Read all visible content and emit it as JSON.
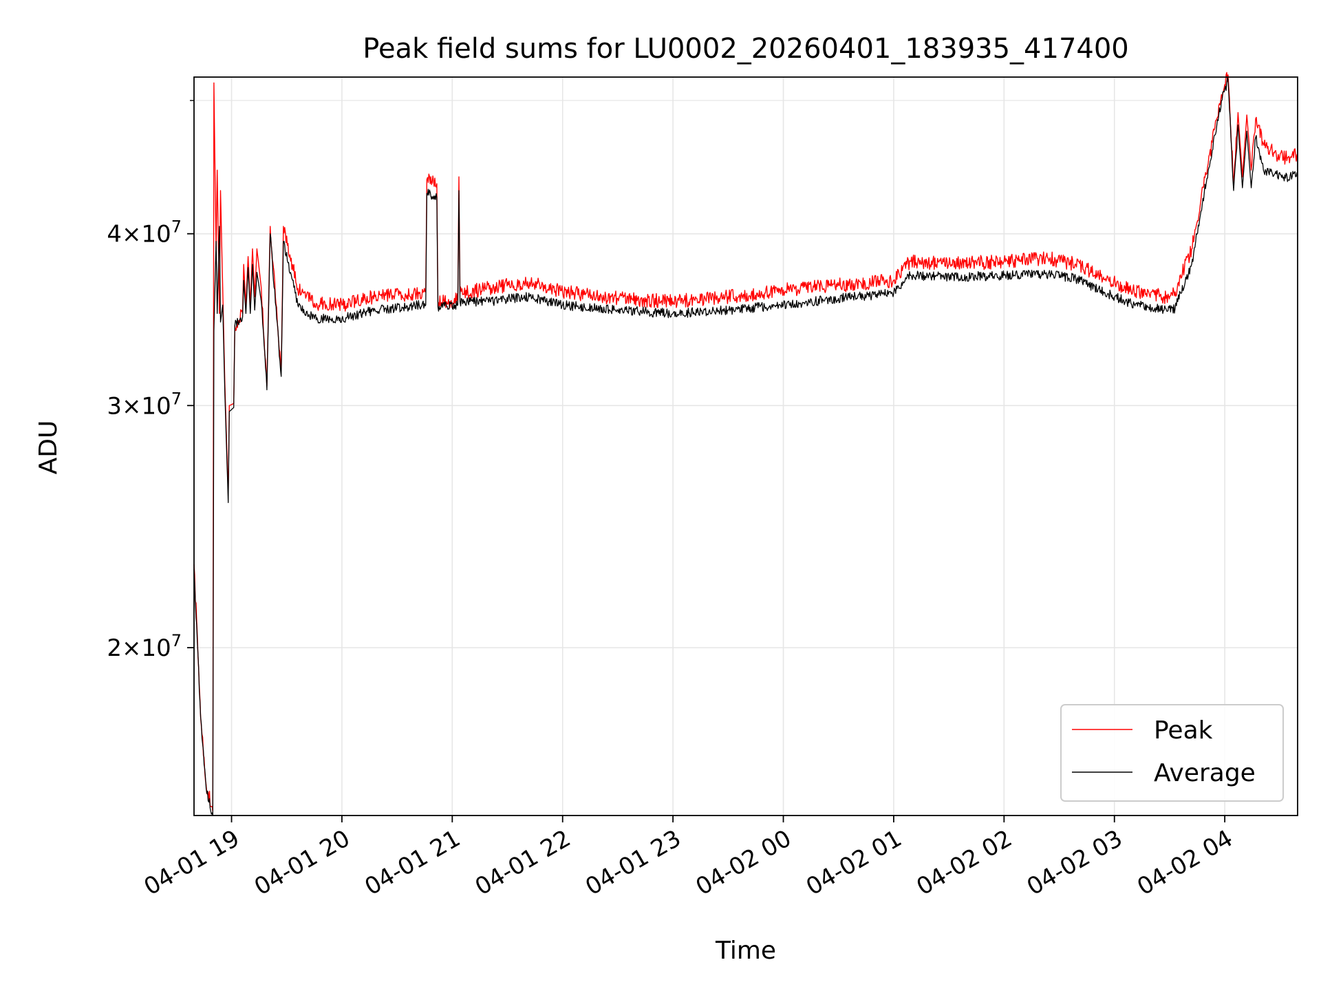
{
  "chart_data": {
    "type": "line",
    "title": "Peak field sums for LU0002_20260401_183935_417400",
    "xlabel": "Time",
    "ylabel": "ADU",
    "yscale": "log",
    "xlim_hours": [
      18.66,
      28.66
    ],
    "ylim": [
      15100000,
      52000000
    ],
    "grid": true,
    "legend_position": "lower right",
    "x_ticks": [
      {
        "value": 19,
        "label": "04-01 19"
      },
      {
        "value": 20,
        "label": "04-01 20"
      },
      {
        "value": 21,
        "label": "04-01 21"
      },
      {
        "value": 22,
        "label": "04-01 22"
      },
      {
        "value": 23,
        "label": "04-01 23"
      },
      {
        "value": 24,
        "label": "04-02 00"
      },
      {
        "value": 25,
        "label": "04-02 01"
      },
      {
        "value": 26,
        "label": "04-02 02"
      },
      {
        "value": 27,
        "label": "04-02 03"
      },
      {
        "value": 28,
        "label": "04-02 04"
      }
    ],
    "y_ticks": [
      {
        "value": 20000000,
        "mant": "2",
        "exp": "7"
      },
      {
        "value": 30000000,
        "mant": "3",
        "exp": "7"
      },
      {
        "value": 40000000,
        "mant": "4",
        "exp": "7"
      }
    ],
    "y_minor_ticks": [
      50000000
    ],
    "series": [
      {
        "name": "Peak",
        "color": "#ff0000",
        "points": [
          [
            18.66,
            23000000
          ],
          [
            18.72,
            17800000
          ],
          [
            18.77,
            15900000
          ],
          [
            18.83,
            15200000
          ],
          [
            18.84,
            51500000
          ],
          [
            18.86,
            39000000
          ],
          [
            18.87,
            44500000
          ],
          [
            18.89,
            35000000
          ],
          [
            18.9,
            43000000
          ],
          [
            18.92,
            36500000
          ],
          [
            18.94,
            31000000
          ],
          [
            18.97,
            25800000
          ],
          [
            18.98,
            30000000
          ],
          [
            19.02,
            30100000
          ],
          [
            19.03,
            34300000
          ],
          [
            19.1,
            35000000
          ],
          [
            19.11,
            38000000
          ],
          [
            19.13,
            35500000
          ],
          [
            19.15,
            38500000
          ],
          [
            19.17,
            35500000
          ],
          [
            19.19,
            39000000
          ],
          [
            19.21,
            36000000
          ],
          [
            19.23,
            39000000
          ],
          [
            19.27,
            36500000
          ],
          [
            19.32,
            31000000
          ],
          [
            19.35,
            40500000
          ],
          [
            19.45,
            31800000
          ],
          [
            19.47,
            40500000
          ],
          [
            19.6,
            36500000
          ],
          [
            19.75,
            35600000
          ],
          [
            20.0,
            35500000
          ],
          [
            20.3,
            36000000
          ],
          [
            20.7,
            36200000
          ],
          [
            20.76,
            36300000
          ],
          [
            20.77,
            43800000
          ],
          [
            20.86,
            43500000
          ],
          [
            20.87,
            35700000
          ],
          [
            21.05,
            35800000
          ],
          [
            21.06,
            44000000
          ],
          [
            21.07,
            36200000
          ],
          [
            21.3,
            36500000
          ],
          [
            21.7,
            36900000
          ],
          [
            22.0,
            36300000
          ],
          [
            22.5,
            35900000
          ],
          [
            23.0,
            35700000
          ],
          [
            23.5,
            36000000
          ],
          [
            24.0,
            36400000
          ],
          [
            24.5,
            36700000
          ],
          [
            25.0,
            37000000
          ],
          [
            25.15,
            38200000
          ],
          [
            25.5,
            38000000
          ],
          [
            26.0,
            38200000
          ],
          [
            26.4,
            38400000
          ],
          [
            26.65,
            38000000
          ],
          [
            26.9,
            37200000
          ],
          [
            27.15,
            36400000
          ],
          [
            27.45,
            36000000
          ],
          [
            27.55,
            36300000
          ],
          [
            27.7,
            39000000
          ],
          [
            27.85,
            45000000
          ],
          [
            27.97,
            50500000
          ],
          [
            28.03,
            52200000
          ],
          [
            28.08,
            43500000
          ],
          [
            28.12,
            49000000
          ],
          [
            28.16,
            44000000
          ],
          [
            28.2,
            48800000
          ],
          [
            28.24,
            44500000
          ],
          [
            28.28,
            48500000
          ],
          [
            28.35,
            46500000
          ],
          [
            28.45,
            45800000
          ],
          [
            28.55,
            45400000
          ],
          [
            28.66,
            45700000
          ]
        ]
      },
      {
        "name": "Average",
        "color": "#000000",
        "points": [
          [
            18.66,
            22800000
          ],
          [
            18.72,
            17800000
          ],
          [
            18.77,
            15800000
          ],
          [
            18.83,
            15100000
          ],
          [
            18.84,
            34000000
          ],
          [
            18.86,
            39500000
          ],
          [
            18.87,
            35000000
          ],
          [
            18.89,
            40500000
          ],
          [
            18.9,
            34500000
          ],
          [
            18.92,
            35500000
          ],
          [
            18.94,
            30500000
          ],
          [
            18.97,
            25500000
          ],
          [
            18.98,
            29700000
          ],
          [
            19.02,
            29900000
          ],
          [
            19.03,
            34300000
          ],
          [
            19.1,
            34800000
          ],
          [
            19.11,
            37000000
          ],
          [
            19.13,
            35000000
          ],
          [
            19.15,
            37800000
          ],
          [
            19.17,
            35000000
          ],
          [
            19.19,
            38000000
          ],
          [
            19.21,
            35200000
          ],
          [
            19.23,
            37500000
          ],
          [
            19.27,
            35700000
          ],
          [
            19.32,
            30800000
          ],
          [
            19.35,
            40000000
          ],
          [
            19.45,
            31500000
          ],
          [
            19.47,
            39500000
          ],
          [
            19.6,
            35500000
          ],
          [
            19.75,
            34700000
          ],
          [
            20.0,
            34700000
          ],
          [
            20.3,
            35200000
          ],
          [
            20.7,
            35500000
          ],
          [
            20.76,
            35500000
          ],
          [
            20.77,
            42800000
          ],
          [
            20.86,
            42500000
          ],
          [
            20.87,
            35400000
          ],
          [
            21.05,
            35500000
          ],
          [
            21.06,
            43000000
          ],
          [
            21.07,
            35700000
          ],
          [
            21.3,
            35700000
          ],
          [
            21.7,
            36000000
          ],
          [
            22.0,
            35500000
          ],
          [
            22.5,
            35200000
          ],
          [
            23.0,
            35000000
          ],
          [
            23.5,
            35200000
          ],
          [
            24.0,
            35500000
          ],
          [
            24.5,
            35900000
          ],
          [
            25.0,
            36200000
          ],
          [
            25.15,
            37300000
          ],
          [
            25.5,
            37200000
          ],
          [
            26.0,
            37300000
          ],
          [
            26.4,
            37400000
          ],
          [
            26.65,
            37100000
          ],
          [
            26.9,
            36300000
          ],
          [
            27.15,
            35600000
          ],
          [
            27.45,
            35200000
          ],
          [
            27.55,
            35300000
          ],
          [
            27.7,
            38000000
          ],
          [
            27.85,
            44500000
          ],
          [
            27.97,
            50000000
          ],
          [
            28.03,
            51800000
          ],
          [
            28.08,
            43000000
          ],
          [
            28.12,
            48000000
          ],
          [
            28.16,
            43200000
          ],
          [
            28.2,
            47500000
          ],
          [
            28.24,
            43200000
          ],
          [
            28.28,
            47000000
          ],
          [
            28.35,
            44500000
          ],
          [
            28.45,
            44200000
          ],
          [
            28.55,
            43900000
          ],
          [
            28.66,
            44300000
          ]
        ]
      }
    ]
  }
}
